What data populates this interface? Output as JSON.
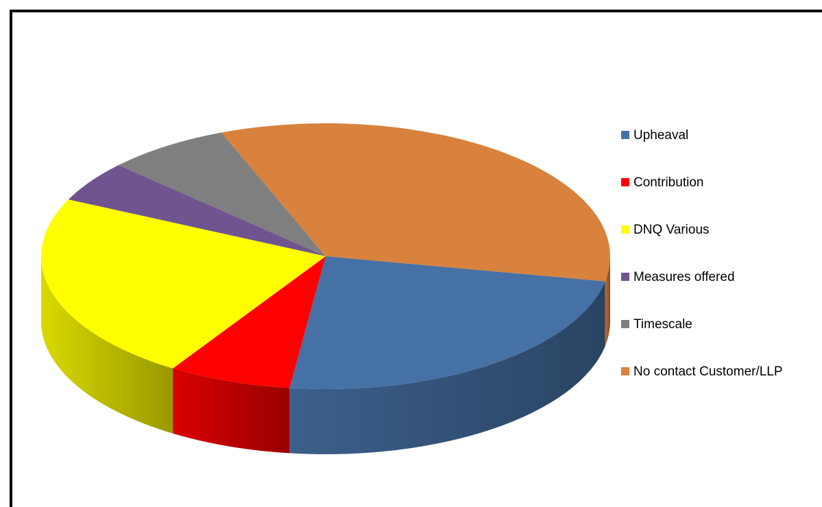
{
  "chart_data": {
    "type": "pie3d",
    "categories": [
      "Upheaval",
      "Contribution",
      "DNQ Various",
      "Measures offered",
      "Timescale",
      "No contact Customer/LLP"
    ],
    "values": [
      24,
      7,
      23,
      5,
      7,
      34
    ],
    "colors": [
      "#4671a5",
      "#ff0000",
      "#ffff00",
      "#70548f",
      "#7f7f7f",
      "#d8823d"
    ],
    "legend": "right"
  }
}
